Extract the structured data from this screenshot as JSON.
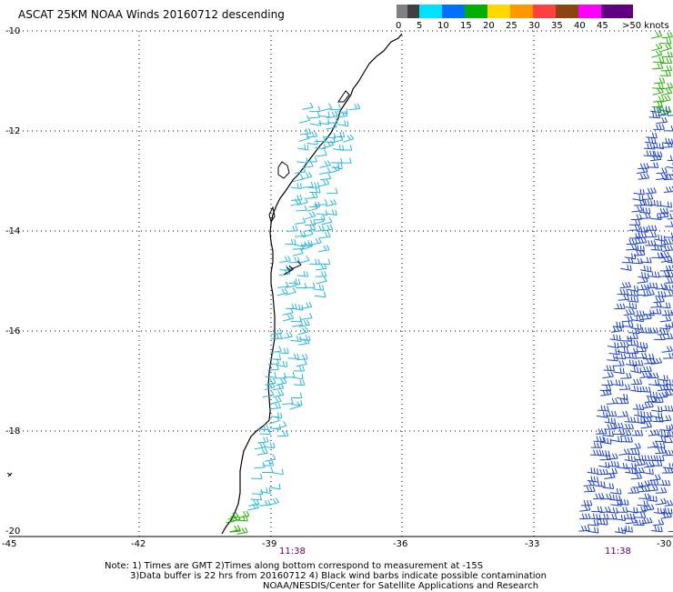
{
  "title": "ASCAT 25KM NOAA Winds 20160712 descending",
  "legend": {
    "labels": [
      "0",
      "5",
      "10",
      "15",
      "20",
      "25",
      "30",
      "35",
      "40",
      "45",
      ">50 knots"
    ],
    "colors": [
      "#808080",
      "#404040",
      "#00e0ff",
      "#0070ff",
      "#0000c0",
      "#00b000",
      "#ffd800",
      "#ff9800",
      "#ff4040",
      "#e00000",
      "#8b4513",
      "#c000c0",
      "#ff00ff",
      "#600080"
    ]
  },
  "axes": {
    "lat_labels": [
      "-10",
      "-12",
      "-14",
      "-16",
      "-18",
      "-20"
    ],
    "lon_labels": [
      "-45",
      "-42",
      "-39",
      "-36",
      "-33",
      "-30"
    ],
    "time_labels": [
      "11:38",
      "11:38"
    ]
  },
  "notes": {
    "line1": "Note: 1) Times are GMT 2)Times along bottom correspond to measurement at -15S",
    "line2": "3)Data buffer is 22 hrs from 20160712 4) Black wind barbs indicate possible contamination",
    "line3": "NOAA/NESDIS/Center for Satellite Applications and Research"
  },
  "wind_colors": {
    "coastal": "#2ab6e0",
    "offshore": "#1a3fd0",
    "green": "#22b000",
    "contaminated": "#000000"
  }
}
